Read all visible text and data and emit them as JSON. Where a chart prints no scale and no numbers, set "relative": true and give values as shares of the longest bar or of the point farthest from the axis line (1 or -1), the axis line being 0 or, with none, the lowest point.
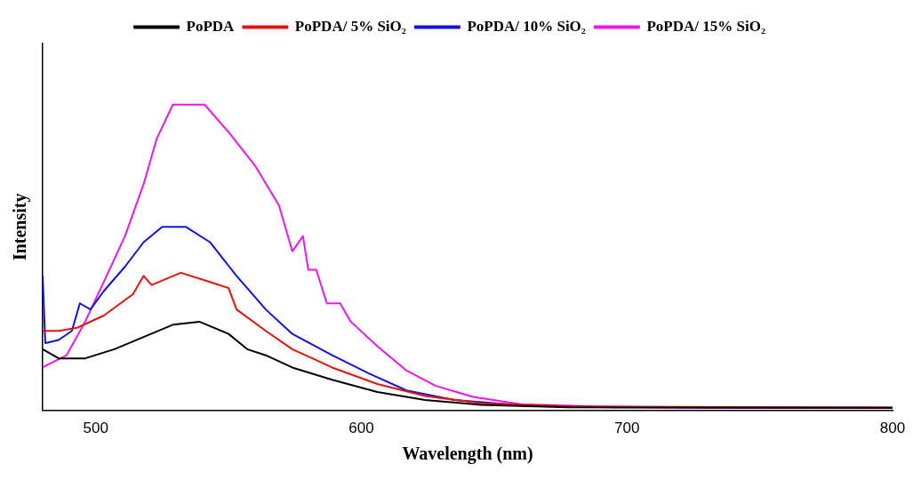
{
  "chart_data": {
    "type": "line",
    "xlabel": "Wavelength (nm)",
    "ylabel": "Intensity",
    "relative": true,
    "xlim": [
      480,
      800
    ],
    "xticks": [
      500,
      600,
      700,
      800
    ],
    "grid": false,
    "legend": "top",
    "marker": "none",
    "line_style": "solid",
    "series": [
      {
        "name": "PoPDA",
        "color": "#000000",
        "x": [
          480,
          486,
          496,
          507,
          518,
          529,
          539,
          550,
          557,
          564,
          574,
          589,
          606,
          624,
          645,
          678,
          800
        ],
        "values": [
          0.2,
          0.17,
          0.17,
          0.2,
          0.24,
          0.28,
          0.29,
          0.25,
          0.2,
          0.18,
          0.14,
          0.1,
          0.06,
          0.034,
          0.018,
          0.01,
          0.008
        ]
      },
      {
        "name": "PoPDA/ 5% SiO₂",
        "color": "#e8120c",
        "x": [
          480,
          486,
          493,
          503,
          514,
          518,
          521,
          532,
          543,
          550,
          553,
          564,
          574,
          589,
          606,
          624,
          645,
          678,
          800
        ],
        "values": [
          0.26,
          0.26,
          0.27,
          0.31,
          0.38,
          0.44,
          0.41,
          0.45,
          0.42,
          0.4,
          0.33,
          0.26,
          0.2,
          0.14,
          0.086,
          0.047,
          0.023,
          0.013,
          0.008
        ]
      },
      {
        "name": "PoPDA/ 10% SiO₂",
        "color": "#1010e8",
        "x": [
          480,
          481,
          486,
          491,
          494,
          498,
          503,
          511,
          518,
          525,
          534,
          543,
          553,
          564,
          574,
          589,
          603,
          617,
          635,
          660,
          695,
          800
        ],
        "values": [
          0.44,
          0.22,
          0.23,
          0.26,
          0.35,
          0.33,
          0.39,
          0.47,
          0.55,
          0.6,
          0.6,
          0.55,
          0.44,
          0.33,
          0.25,
          0.18,
          0.12,
          0.065,
          0.034,
          0.016,
          0.01,
          0.008
        ]
      },
      {
        "name": "PoPDA/ 15% SiO₂",
        "color": "#f014f0",
        "x": [
          480,
          482,
          489,
          496,
          503,
          511,
          518,
          523,
          529,
          541,
          550,
          560,
          569,
          574,
          578,
          580,
          583,
          587,
          592,
          596,
          606,
          617,
          628,
          642,
          660,
          688,
          730,
          800
        ],
        "values": [
          0.14,
          0.15,
          0.18,
          0.29,
          0.42,
          0.57,
          0.74,
          0.89,
          1.0,
          1.0,
          0.91,
          0.8,
          0.67,
          0.52,
          0.57,
          0.46,
          0.46,
          0.35,
          0.35,
          0.29,
          0.21,
          0.13,
          0.08,
          0.044,
          0.02,
          0.013,
          0.008,
          0.008
        ]
      }
    ]
  }
}
